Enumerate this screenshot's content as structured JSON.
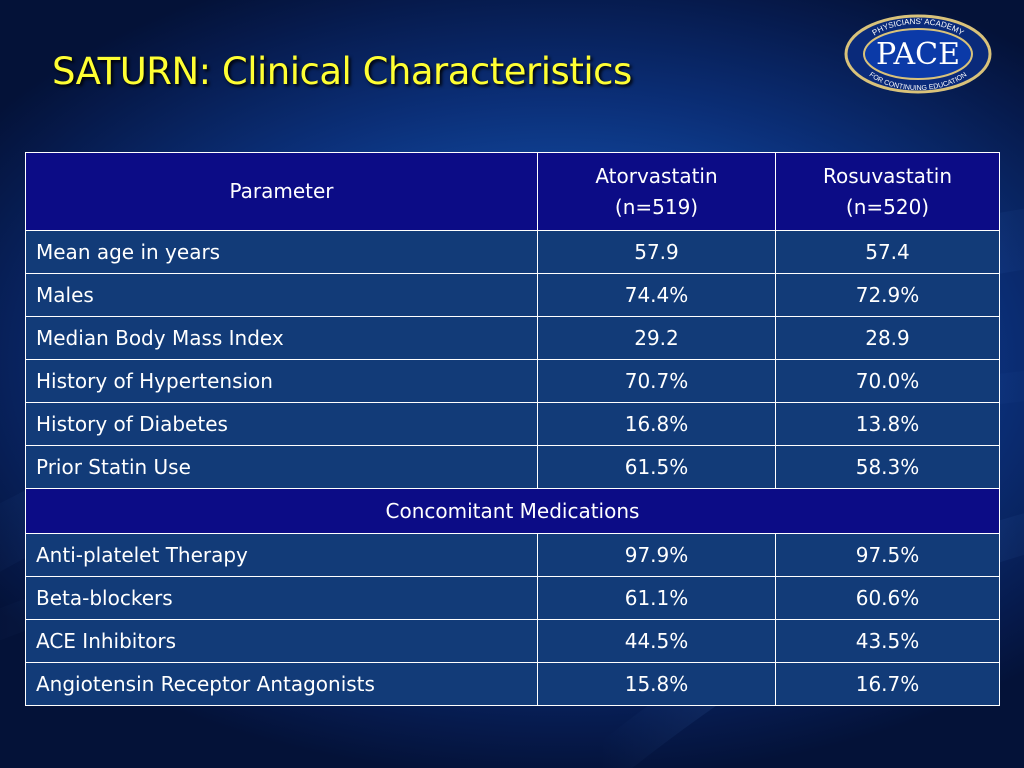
{
  "slide": {
    "title": "SATURN: Clinical Characteristics"
  },
  "logo": {
    "main_text": "PACE",
    "ring_top": "PHYSICIANS' ACADEMY",
    "ring_bottom": "FOR CONTINUING EDUCATION"
  },
  "table": {
    "header": {
      "parameter": "Parameter",
      "col_a_name": "Atorvastatin",
      "col_a_n": "(n=519)",
      "col_b_name": "Rosuvastatin",
      "col_b_n": "(n=520)"
    },
    "rows": [
      {
        "parameter": "Mean age in years",
        "atorvastatin": "57.9",
        "rosuvastatin": "57.4"
      },
      {
        "parameter": "Males",
        "atorvastatin": "74.4%",
        "rosuvastatin": "72.9%"
      },
      {
        "parameter": "Median Body Mass Index",
        "atorvastatin": "29.2",
        "rosuvastatin": "28.9"
      },
      {
        "parameter": "History of Hypertension",
        "atorvastatin": "70.7%",
        "rosuvastatin": "70.0%"
      },
      {
        "parameter": "History of Diabetes",
        "atorvastatin": "16.8%",
        "rosuvastatin": "13.8%"
      },
      {
        "parameter": "Prior Statin Use",
        "atorvastatin": "61.5%",
        "rosuvastatin": "58.3%"
      }
    ],
    "section_label": "Concomitant Medications",
    "section_rows": [
      {
        "parameter": "Anti-platelet Therapy",
        "atorvastatin": "97.9%",
        "rosuvastatin": "97.5%"
      },
      {
        "parameter": "Beta-blockers",
        "atorvastatin": "61.1%",
        "rosuvastatin": "60.6%"
      },
      {
        "parameter": "ACE Inhibitors",
        "atorvastatin": "44.5%",
        "rosuvastatin": "43.5%"
      },
      {
        "parameter": "Angiotensin Receptor Antagonists",
        "atorvastatin": "15.8%",
        "rosuvastatin": "16.7%"
      }
    ]
  },
  "colors": {
    "title": "#ffff33",
    "header_bg": "#0c0c86",
    "row_bg": "#123b78",
    "border": "#ffffff"
  }
}
